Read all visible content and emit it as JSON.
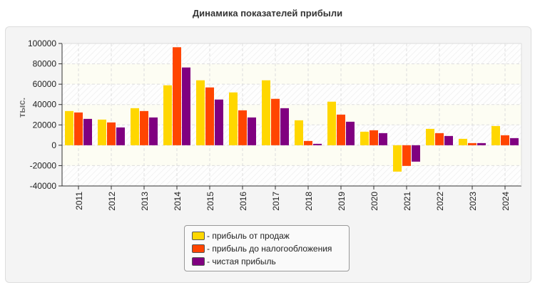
{
  "chart_data": {
    "type": "bar",
    "title": "Динамика показателей прибыли",
    "ylabel": "тыс.",
    "xlabel": "",
    "ylim": [
      -40000,
      100000
    ],
    "yticks": [
      -40000,
      -20000,
      0,
      20000,
      40000,
      60000,
      80000,
      100000
    ],
    "grid": true,
    "legend_position": "bottom",
    "categories": [
      "2011",
      "2012",
      "2013",
      "2014",
      "2015",
      "2016",
      "2017",
      "2018",
      "2019",
      "2020",
      "2021",
      "2022",
      "2023",
      "2024"
    ],
    "series": [
      {
        "name": "- прибыль от продаж",
        "color": "#ffd700",
        "values": [
          33600,
          25200,
          36400,
          58900,
          63800,
          51900,
          63800,
          24500,
          42800,
          13300,
          -25900,
          16100,
          6300,
          18900
        ]
      },
      {
        "name": "- прибыль до налогообложения",
        "color": "#ff4500",
        "values": [
          32200,
          22400,
          33600,
          96300,
          56800,
          34300,
          45600,
          4200,
          30100,
          14700,
          -20300,
          11900,
          2100,
          9800
        ]
      },
      {
        "name": "- чистая прибыль",
        "color": "#800080",
        "values": [
          25900,
          17500,
          27300,
          76400,
          44900,
          27300,
          36400,
          1400,
          23100,
          11900,
          -16100,
          9100,
          2100,
          7000
        ]
      }
    ]
  }
}
